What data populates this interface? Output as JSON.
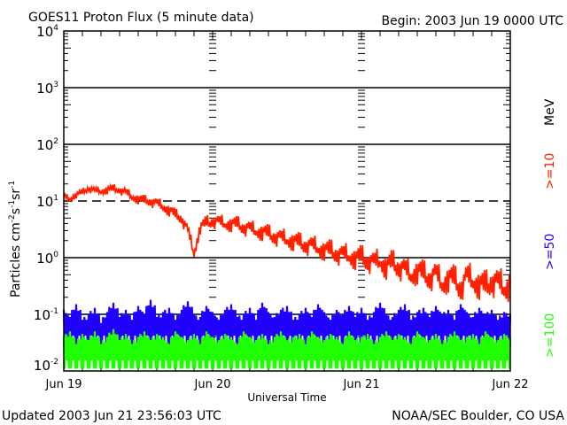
{
  "header": {
    "title": "GOES11 Proton Flux (5 minute data)",
    "begin": "Begin: 2003 Jun 19 0000 UTC"
  },
  "footer": {
    "updated": "Updated 2003 Jun 21 23:56:03 UTC",
    "source": "NOAA/SEC Boulder, CO USA"
  },
  "chart_data": {
    "type": "line",
    "title": "GOES11 Proton Flux (5 minute data)",
    "xlabel": "Universal Time",
    "ylabel_main": "Particles cm",
    "ylabel_parts": [
      "-2",
      "s",
      "-1",
      "sr",
      "-1"
    ],
    "yscale": "log",
    "ylim": [
      0.01,
      10000
    ],
    "xlim_hours": [
      0,
      72
    ],
    "grid": "horizontal lines at each decade; 10^1 dashed",
    "x_ticks": [
      {
        "hour": 0,
        "label": "Jun 19"
      },
      {
        "hour": 24,
        "label": "Jun 20"
      },
      {
        "hour": 48,
        "label": "Jun 21"
      },
      {
        "hour": 72,
        "label": "Jun 22"
      }
    ],
    "y_ticks": [
      {
        "exp": 4,
        "base": "10",
        "sup": "4"
      },
      {
        "exp": 3,
        "base": "10",
        "sup": "3"
      },
      {
        "exp": 2,
        "base": "10",
        "sup": "2"
      },
      {
        "exp": 1,
        "base": "10",
        "sup": "1"
      },
      {
        "exp": 0,
        "base": "10",
        "sup": "0"
      },
      {
        "exp": -1,
        "base": "10",
        "sup": "-1"
      },
      {
        "exp": -2,
        "base": "10",
        "sup": "-2"
      }
    ],
    "legend": {
      "placement": "right",
      "unit": "MeV"
    },
    "x_hours_step": 1,
    "series": [
      {
        "name": ">=10",
        "color": "#ff2000",
        "values": [
          12,
          11,
          13,
          14,
          17,
          15,
          15,
          16,
          16,
          16,
          14,
          12,
          11,
          10,
          10,
          9,
          8,
          7,
          5.6,
          5,
          3,
          1.2,
          3.5,
          4,
          4.5,
          4.2,
          4,
          4,
          3.8,
          3.5,
          3.2,
          3,
          2.9,
          2.6,
          2.4,
          2.2,
          2.1,
          2,
          1.8,
          1.7,
          1.6,
          1.5,
          1.4,
          1.3,
          1.2,
          1.1,
          1.1,
          1.0,
          1.0,
          0.9,
          0.8,
          0.9,
          0.7,
          0.8,
          0.7,
          0.6,
          0.5,
          0.6,
          0.5,
          0.45,
          0.5,
          0.35,
          0.45,
          0.4,
          0.3,
          0.45,
          0.4,
          0.35,
          0.3,
          0.4,
          0.35,
          0.3,
          0.35
        ]
      },
      {
        "name": ">=50",
        "color": "#2000ff",
        "values": [
          0.12,
          0.09,
          0.15,
          0.08,
          0.1,
          0.13,
          0.07,
          0.11,
          0.16,
          0.09,
          0.12,
          0.08,
          0.14,
          0.1,
          0.18,
          0.09,
          0.11,
          0.13,
          0.08,
          0.12,
          0.17,
          0.1,
          0.09,
          0.14,
          0.11,
          0.08,
          0.12,
          0.15,
          0.09,
          0.1,
          0.13,
          0.08,
          0.16,
          0.11,
          0.09,
          0.12,
          0.14,
          0.08,
          0.1,
          0.13,
          0.09,
          0.15,
          0.11,
          0.08,
          0.12,
          0.1,
          0.14,
          0.09,
          0.13,
          0.08,
          0.11,
          0.16,
          0.1,
          0.09,
          0.12,
          0.15,
          0.08,
          0.11,
          0.13,
          0.09,
          0.14,
          0.1,
          0.12,
          0.08,
          0.15,
          0.11,
          0.09,
          0.13,
          0.1,
          0.12,
          0.08,
          0.11,
          0.1
        ],
        "floor": 0.03
      },
      {
        "name": ">=100",
        "color": "#20ff00",
        "values": [
          0.04,
          0.05,
          0.03,
          0.045,
          0.035,
          0.05,
          0.03,
          0.04,
          0.055,
          0.035,
          0.045,
          0.03,
          0.04,
          0.05,
          0.035,
          0.045,
          0.04,
          0.03,
          0.05,
          0.04,
          0.035,
          0.045,
          0.03,
          0.05,
          0.04,
          0.035,
          0.045,
          0.04,
          0.03,
          0.05,
          0.04,
          0.035,
          0.045,
          0.03,
          0.04,
          0.05,
          0.035,
          0.04,
          0.045,
          0.03,
          0.05,
          0.04,
          0.035,
          0.045,
          0.04,
          0.03,
          0.05,
          0.035,
          0.04,
          0.045,
          0.03,
          0.04,
          0.05,
          0.035,
          0.045,
          0.04,
          0.03,
          0.05,
          0.04,
          0.035,
          0.045,
          0.03,
          0.04,
          0.05,
          0.035,
          0.04,
          0.045,
          0.03,
          0.05,
          0.04,
          0.035,
          0.045,
          0.04
        ],
        "floor": 0.011
      }
    ]
  }
}
